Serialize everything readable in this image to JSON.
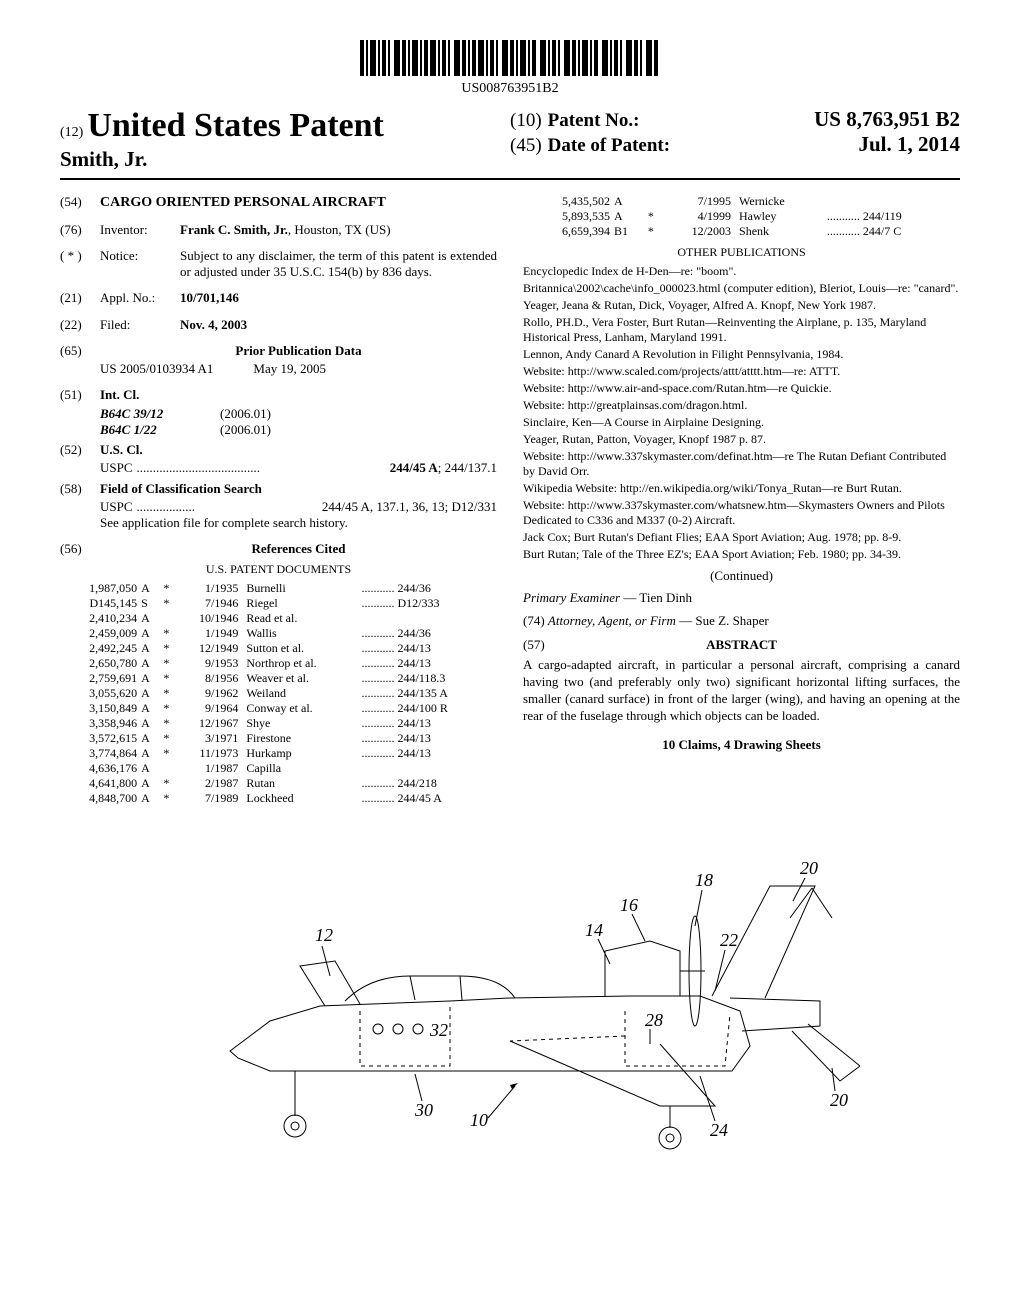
{
  "barcode_number": "US008763951B2",
  "header": {
    "type_prefix": "(12)",
    "type": "United States Patent",
    "inventor_last": "Smith, Jr.",
    "patent_no_code": "(10)",
    "patent_no_label": "Patent No.:",
    "patent_no": "US 8,763,951 B2",
    "date_code": "(45)",
    "date_label": "Date of Patent:",
    "date": "Jul. 1, 2014"
  },
  "left": {
    "title_code": "(54)",
    "title": "CARGO ORIENTED PERSONAL AIRCRAFT",
    "inventor_code": "(76)",
    "inventor_label": "Inventor:",
    "inventor_value": "Frank C. Smith, Jr.",
    "inventor_loc": ", Houston, TX (US)",
    "notice_code": "( * )",
    "notice_label": "Notice:",
    "notice_text": "Subject to any disclaimer, the term of this patent is extended or adjusted under 35 U.S.C. 154(b) by 836 days.",
    "appl_code": "(21)",
    "appl_label": "Appl. No.:",
    "appl_value": "10/701,146",
    "filed_code": "(22)",
    "filed_label": "Filed:",
    "filed_value": "Nov. 4, 2003",
    "prior_pub_code": "(65)",
    "prior_pub_heading": "Prior Publication Data",
    "prior_pub_num": "US 2005/0103934 A1",
    "prior_pub_date": "May 19, 2005",
    "intcl_code": "(51)",
    "intcl_label": "Int. Cl.",
    "intcl_items": [
      {
        "cls": "B64C 39/12",
        "ver": "(2006.01)"
      },
      {
        "cls": "B64C 1/22",
        "ver": "(2006.01)"
      }
    ],
    "uscl_code": "(52)",
    "uscl_label": "U.S. Cl.",
    "uscl_prefix": "USPC",
    "uscl_value": "244/45 A",
    "uscl_value2": "; 244/137.1",
    "search_code": "(58)",
    "search_label": "Field of Classification Search",
    "search_prefix": "USPC",
    "search_value": "244/45 A, 137.1, 36, 13; D12/331",
    "search_note": "See application file for complete search history.",
    "refs_code": "(56)",
    "refs_heading": "References Cited",
    "refs_sub": "U.S. PATENT DOCUMENTS",
    "refs": [
      {
        "num": "1,987,050",
        "t": "A",
        "star": "*",
        "date": "1/1935",
        "name": "Burnelli",
        "cls": "244/36"
      },
      {
        "num": "D145,145",
        "t": "S",
        "star": "*",
        "date": "7/1946",
        "name": "Riegel",
        "cls": "D12/333"
      },
      {
        "num": "2,410,234",
        "t": "A",
        "star": "",
        "date": "10/1946",
        "name": "Read et al.",
        "cls": ""
      },
      {
        "num": "2,459,009",
        "t": "A",
        "star": "*",
        "date": "1/1949",
        "name": "Wallis",
        "cls": "244/36"
      },
      {
        "num": "2,492,245",
        "t": "A",
        "star": "*",
        "date": "12/1949",
        "name": "Sutton et al.",
        "cls": "244/13"
      },
      {
        "num": "2,650,780",
        "t": "A",
        "star": "*",
        "date": "9/1953",
        "name": "Northrop et al.",
        "cls": "244/13"
      },
      {
        "num": "2,759,691",
        "t": "A",
        "star": "*",
        "date": "8/1956",
        "name": "Weaver et al.",
        "cls": "244/118.3"
      },
      {
        "num": "3,055,620",
        "t": "A",
        "star": "*",
        "date": "9/1962",
        "name": "Weiland",
        "cls": "244/135 A"
      },
      {
        "num": "3,150,849",
        "t": "A",
        "star": "*",
        "date": "9/1964",
        "name": "Conway et al.",
        "cls": "244/100 R"
      },
      {
        "num": "3,358,946",
        "t": "A",
        "star": "*",
        "date": "12/1967",
        "name": "Shye",
        "cls": "244/13"
      },
      {
        "num": "3,572,615",
        "t": "A",
        "star": "*",
        "date": "3/1971",
        "name": "Firestone",
        "cls": "244/13"
      },
      {
        "num": "3,774,864",
        "t": "A",
        "star": "*",
        "date": "11/1973",
        "name": "Hurkamp",
        "cls": "244/13"
      },
      {
        "num": "4,636,176",
        "t": "A",
        "star": "",
        "date": "1/1987",
        "name": "Capilla",
        "cls": ""
      },
      {
        "num": "4,641,800",
        "t": "A",
        "star": "*",
        "date": "2/1987",
        "name": "Rutan",
        "cls": "244/218"
      },
      {
        "num": "4,848,700",
        "t": "A",
        "star": "*",
        "date": "7/1989",
        "name": "Lockheed",
        "cls": "244/45 A"
      }
    ]
  },
  "right": {
    "refs_cont": [
      {
        "num": "5,435,502",
        "t": "A",
        "star": "",
        "date": "7/1995",
        "name": "Wernicke",
        "cls": ""
      },
      {
        "num": "5,893,535",
        "t": "A",
        "star": "*",
        "date": "4/1999",
        "name": "Hawley",
        "cls": "244/119"
      },
      {
        "num": "6,659,394",
        "t": "B1",
        "star": "*",
        "date": "12/2003",
        "name": "Shenk",
        "cls": "244/7 C"
      }
    ],
    "other_pub_heading": "OTHER PUBLICATIONS",
    "other_pubs": [
      "Encyclopedic Index de H-Den—re: \"boom\".",
      "Britannica\\2002\\cache\\info_000023.html (computer edition), Bleriot, Louis—re: \"canard\".",
      "Yeager, Jeana & Rutan, Dick, Voyager, Alfred A. Knopf, New York 1987.",
      "Rollo, PH.D., Vera Foster, Burt Rutan—Reinventing the Airplane, p. 135, Maryland Historical Press, Lanham, Maryland 1991.",
      "Lennon, Andy Canard A Revolution in Filight Pennsylvania, 1984.",
      "Website: http://www.scaled.com/projects/attt/atttt.htm—re: ATTT.",
      "Website: http://www.air-and-space.com/Rutan.htm—re Quickie.",
      "Website: http://greatplainsas.com/dragon.html.",
      "Sinclaire, Ken—A Course in Airplaine Designing.",
      "Yeager, Rutan, Patton, Voyager, Knopf 1987 p. 87.",
      "Website: http://www.337skymaster.com/definat.htm—re The Rutan Defiant Contributed by David Orr.",
      "Wikipedia Website: http://en.wikipedia.org/wiki/Tonya_Rutan—re Burt Rutan.",
      "Website: http://www.337skymaster.com/whatsnew.htm—Skymasters Owners and Pilots Dedicated to C336 and M337 (0-2) Aircraft.",
      "Jack Cox; Burt Rutan's Defiant Flies; EAA Sport Aviation; Aug. 1978; pp. 8-9.",
      "Burt Rutan; Tale of the Three EZ's; EAA Sport Aviation; Feb. 1980; pp. 34-39."
    ],
    "continued": "(Continued)",
    "examiner_label": "Primary Examiner",
    "examiner": "Tien Dinh",
    "attorney_code": "(74)",
    "attorney_label": "Attorney, Agent, or Firm",
    "attorney": "Sue Z. Shaper",
    "abstract_code": "(57)",
    "abstract_heading": "ABSTRACT",
    "abstract_text": "A cargo-adapted aircraft, in particular a personal aircraft, comprising a canard having two (and preferably only two) significant horizontal lifting surfaces, the smaller (canard surface) in front of the larger (wing), and having an opening at the rear of the fuselage through which objects can be loaded.",
    "claims_line": "10 Claims, 4 Drawing Sheets"
  },
  "drawing": {
    "labels": [
      "10",
      "12",
      "14",
      "16",
      "18",
      "20",
      "20",
      "22",
      "24",
      "28",
      "30",
      "32"
    ]
  }
}
